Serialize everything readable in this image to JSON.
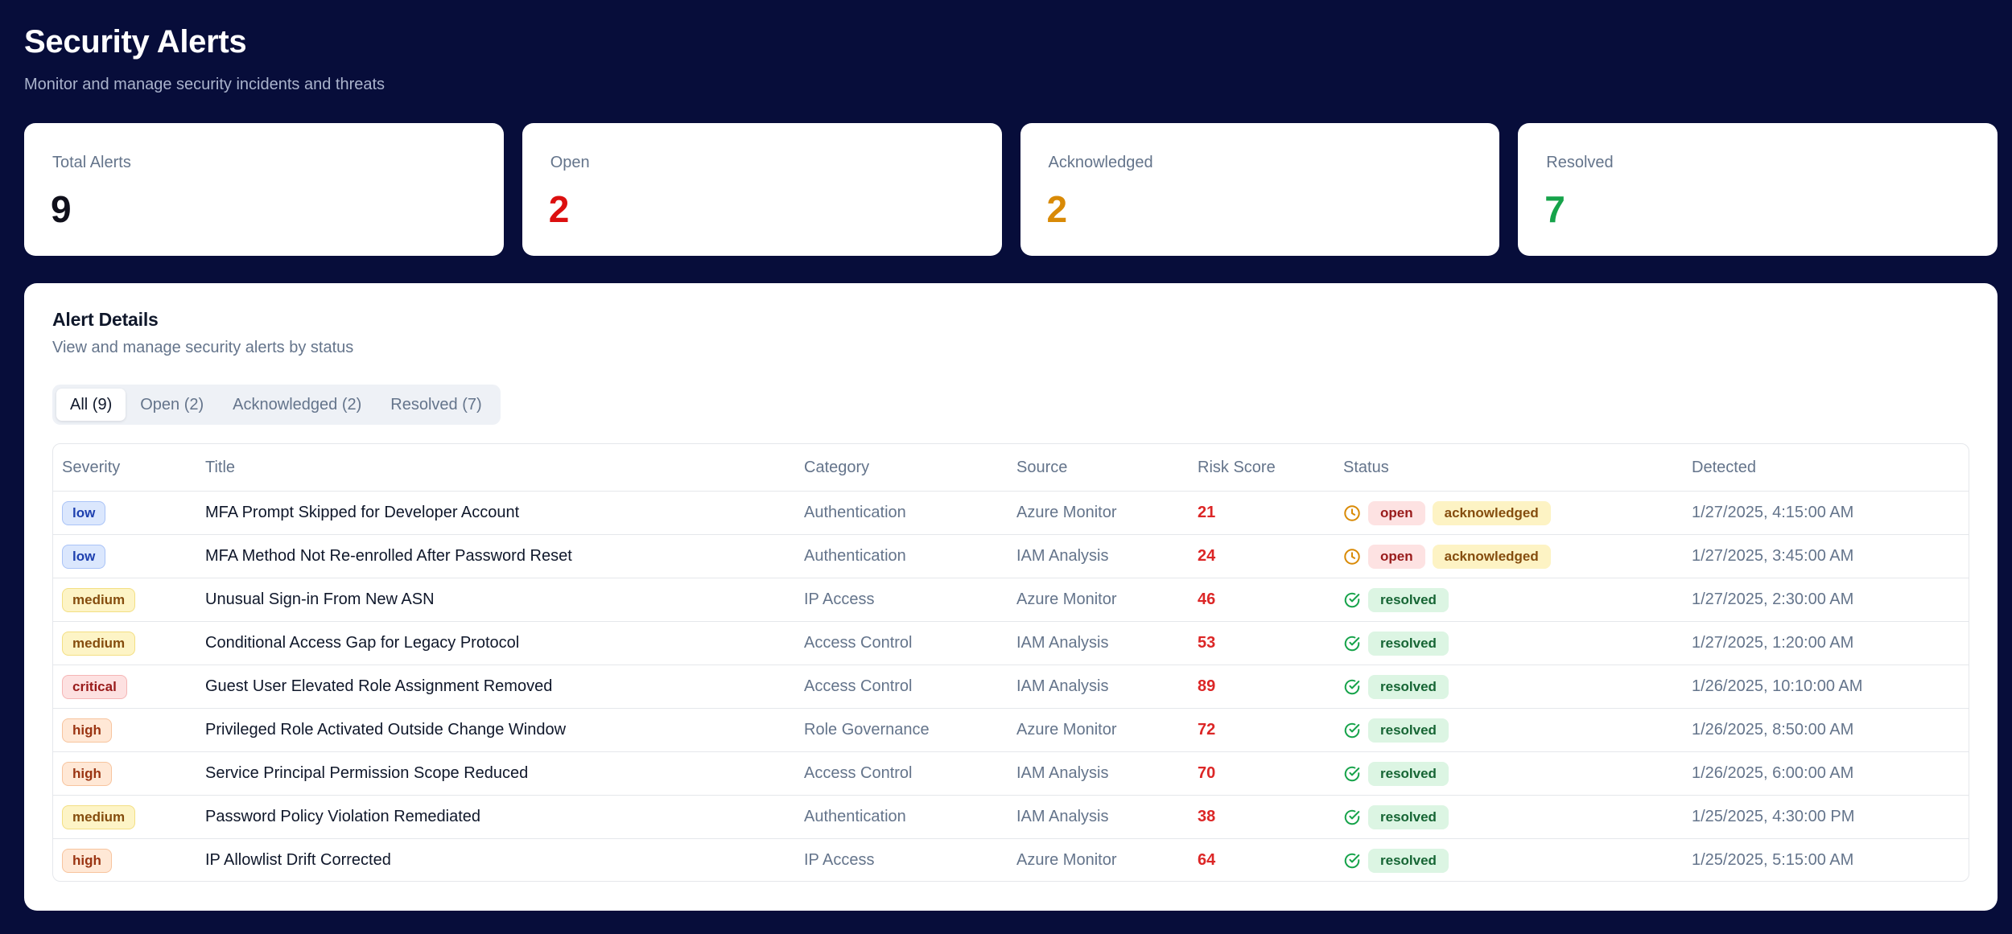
{
  "header": {
    "title": "Security Alerts",
    "subtitle": "Monitor and manage security incidents and threats"
  },
  "stats": [
    {
      "label": "Total Alerts",
      "value": "9",
      "color": "#0f0f1a"
    },
    {
      "label": "Open",
      "value": "2",
      "color": "#dc0f0f"
    },
    {
      "label": "Acknowledged",
      "value": "2",
      "color": "#d98a06"
    },
    {
      "label": "Resolved",
      "value": "7",
      "color": "#16a34a"
    }
  ],
  "details": {
    "title": "Alert Details",
    "subtitle": "View and manage security alerts by status"
  },
  "tabs": [
    {
      "label": "All (9)",
      "active": true
    },
    {
      "label": "Open (2)",
      "active": false
    },
    {
      "label": "Acknowledged (2)",
      "active": false
    },
    {
      "label": "Resolved (7)",
      "active": false
    }
  ],
  "columns": [
    "Severity",
    "Title",
    "Category",
    "Source",
    "Risk Score",
    "Status",
    "Detected"
  ],
  "alerts": [
    {
      "severity": "low",
      "title": "MFA Prompt Skipped for Developer Account",
      "category": "Authentication",
      "source": "Azure Monitor",
      "risk": "21",
      "status_icon": "clock-icon",
      "statuses": [
        "open",
        "acknowledged"
      ],
      "detected": "1/27/2025, 4:15:00 AM"
    },
    {
      "severity": "low",
      "title": "MFA Method Not Re-enrolled After Password Reset",
      "category": "Authentication",
      "source": "IAM Analysis",
      "risk": "24",
      "status_icon": "clock-icon",
      "statuses": [
        "open",
        "acknowledged"
      ],
      "detected": "1/27/2025, 3:45:00 AM"
    },
    {
      "severity": "medium",
      "title": "Unusual Sign-in From New ASN",
      "category": "IP Access",
      "source": "Azure Monitor",
      "risk": "46",
      "status_icon": "check-circle-icon",
      "statuses": [
        "resolved"
      ],
      "detected": "1/27/2025, 2:30:00 AM"
    },
    {
      "severity": "medium",
      "title": "Conditional Access Gap for Legacy Protocol",
      "category": "Access Control",
      "source": "IAM Analysis",
      "risk": "53",
      "status_icon": "check-circle-icon",
      "statuses": [
        "resolved"
      ],
      "detected": "1/27/2025, 1:20:00 AM"
    },
    {
      "severity": "critical",
      "title": "Guest User Elevated Role Assignment Removed",
      "category": "Access Control",
      "source": "IAM Analysis",
      "risk": "89",
      "status_icon": "check-circle-icon",
      "statuses": [
        "resolved"
      ],
      "detected": "1/26/2025, 10:10:00 AM"
    },
    {
      "severity": "high",
      "title": "Privileged Role Activated Outside Change Window",
      "category": "Role Governance",
      "source": "Azure Monitor",
      "risk": "72",
      "status_icon": "check-circle-icon",
      "statuses": [
        "resolved"
      ],
      "detected": "1/26/2025, 8:50:00 AM"
    },
    {
      "severity": "high",
      "title": "Service Principal Permission Scope Reduced",
      "category": "Access Control",
      "source": "IAM Analysis",
      "risk": "70",
      "status_icon": "check-circle-icon",
      "statuses": [
        "resolved"
      ],
      "detected": "1/26/2025, 6:00:00 AM"
    },
    {
      "severity": "medium",
      "title": "Password Policy Violation Remediated",
      "category": "Authentication",
      "source": "IAM Analysis",
      "risk": "38",
      "status_icon": "check-circle-icon",
      "statuses": [
        "resolved"
      ],
      "detected": "1/25/2025, 4:30:00 PM"
    },
    {
      "severity": "high",
      "title": "IP Allowlist Drift Corrected",
      "category": "IP Access",
      "source": "Azure Monitor",
      "risk": "64",
      "status_icon": "check-circle-icon",
      "statuses": [
        "resolved"
      ],
      "detected": "1/25/2025, 5:15:00 AM"
    }
  ],
  "colors": {
    "background": "#070d3a",
    "risk": "#dc2626",
    "clock_icon": "#d98a06",
    "check_icon": "#16a34a"
  }
}
